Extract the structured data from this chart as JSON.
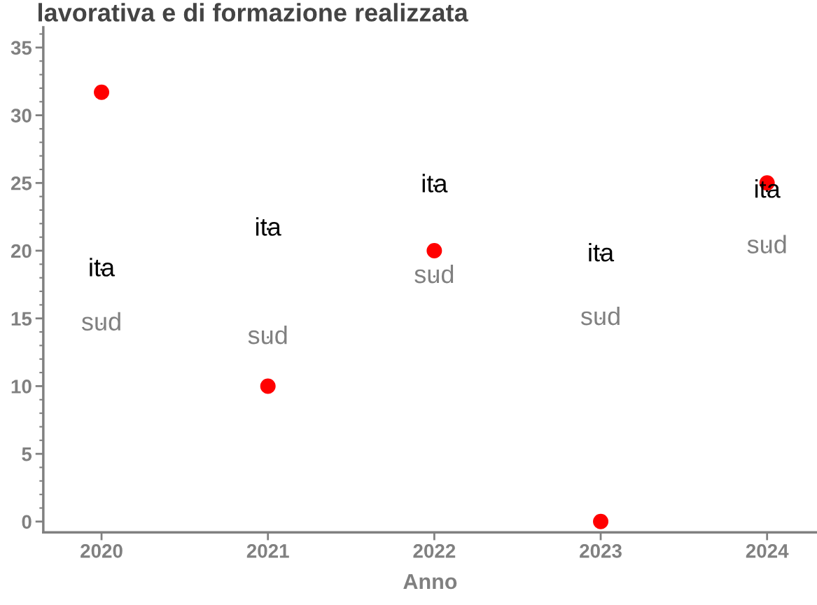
{
  "chart_data": {
    "type": "scatter",
    "title": "lavorativa e di formazione realizzata",
    "xlabel": "Anno",
    "x": [
      2020,
      2021,
      2022,
      2023,
      2024
    ],
    "series": [
      {
        "color": "#ff0000",
        "marker": "circle",
        "values": [
          31.7,
          10,
          20,
          0,
          25
        ]
      },
      {
        "name": "ita",
        "color": "#000000",
        "marker": "none",
        "values": [
          18.6,
          21.6,
          24.8,
          19.7,
          24.4
        ]
      },
      {
        "name": "sud",
        "color": "#808080",
        "marker": "none",
        "values": [
          14.6,
          13.6,
          18.1,
          15.0,
          20.3
        ]
      }
    ],
    "xlim": [
      2019.65,
      2024.3
    ],
    "ylim": [
      -0.8,
      36.5
    ],
    "xticks": [
      2020,
      2021,
      2022,
      2023,
      2024
    ],
    "yticks": [
      0,
      5,
      10,
      15,
      20,
      25,
      30,
      35
    ],
    "grid": false,
    "legend": false
  }
}
